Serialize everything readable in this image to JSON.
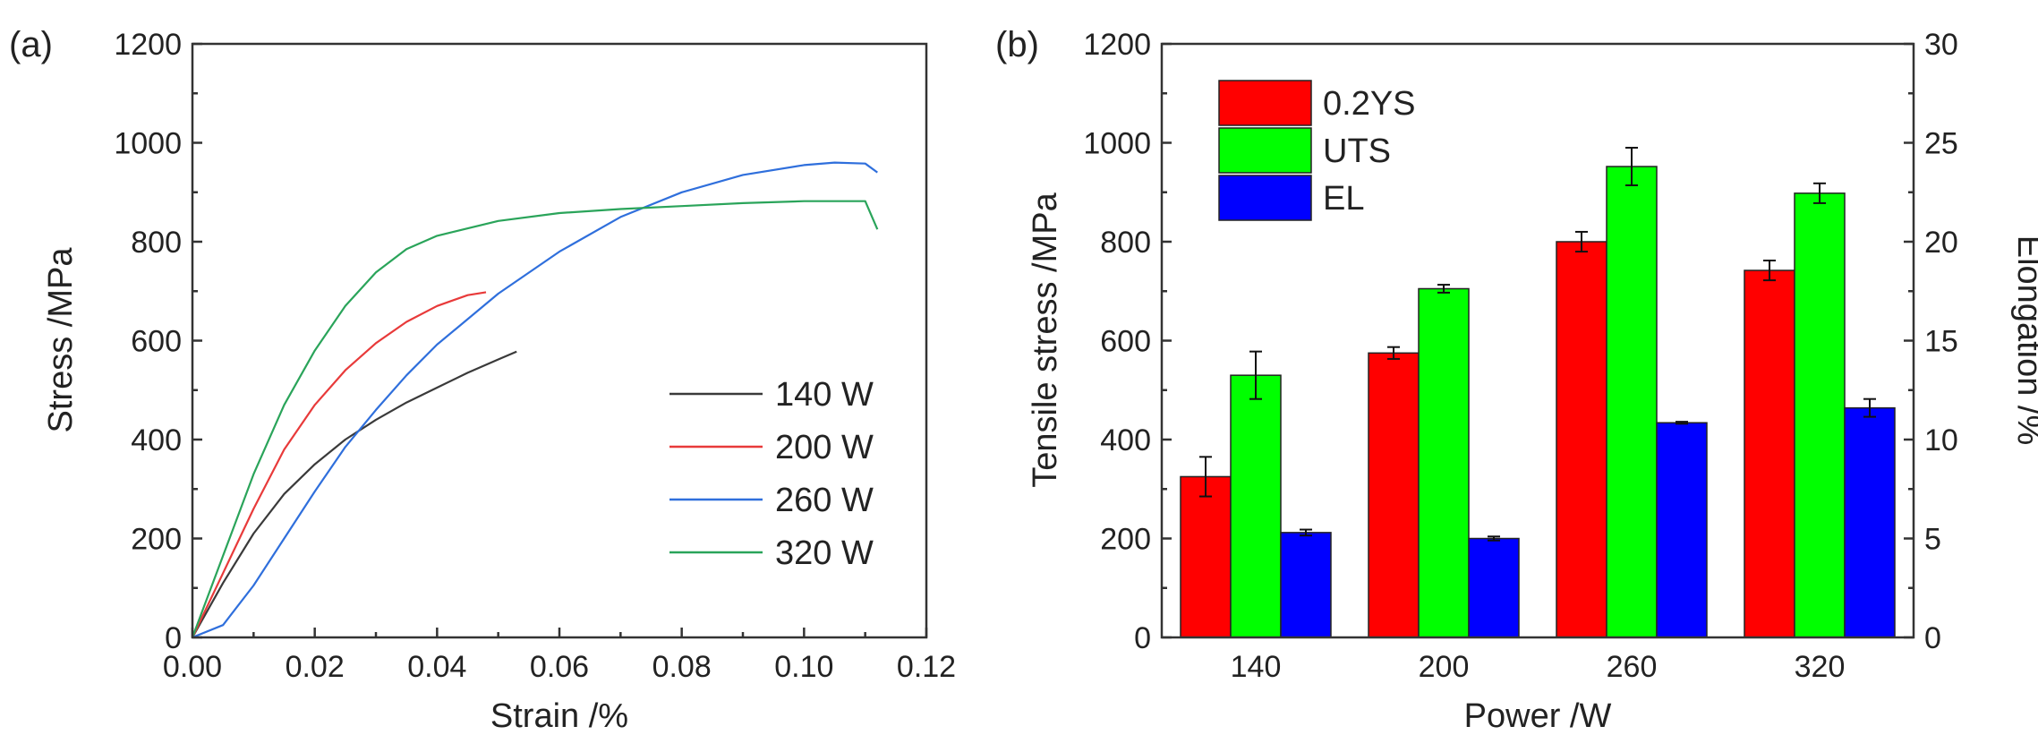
{
  "chart_data": [
    {
      "panel_label": "(a)",
      "type": "line",
      "xlabel": "Strain /%",
      "ylabel": "Stress /MPa",
      "xlim": [
        0,
        0.12
      ],
      "ylim": [
        0,
        1200
      ],
      "x_ticks": [
        "0.00",
        "0.02",
        "0.04",
        "0.06",
        "0.08",
        "0.10",
        "0.12"
      ],
      "y_ticks": [
        "0",
        "200",
        "400",
        "600",
        "800",
        "1000",
        "1200"
      ],
      "legend_position": "bottom-right",
      "series": [
        {
          "name": "140 W",
          "color": "#3a3a3a",
          "x": [
            0,
            0.005,
            0.01,
            0.015,
            0.02,
            0.025,
            0.03,
            0.035,
            0.04,
            0.045,
            0.05,
            0.053
          ],
          "y": [
            0,
            110,
            210,
            290,
            350,
            400,
            440,
            475,
            505,
            535,
            562,
            578
          ]
        },
        {
          "name": "200 W",
          "color": "#e83a3a",
          "x": [
            0,
            0.005,
            0.01,
            0.015,
            0.02,
            0.025,
            0.03,
            0.035,
            0.04,
            0.045,
            0.048
          ],
          "y": [
            0,
            130,
            260,
            380,
            470,
            540,
            595,
            638,
            670,
            692,
            698
          ]
        },
        {
          "name": "260 W",
          "color": "#2f6fdc",
          "x": [
            0,
            0.005,
            0.01,
            0.015,
            0.02,
            0.025,
            0.03,
            0.035,
            0.04,
            0.05,
            0.06,
            0.07,
            0.08,
            0.09,
            0.1,
            0.105,
            0.11,
            0.112
          ],
          "y": [
            0,
            25,
            105,
            200,
            295,
            385,
            460,
            530,
            592,
            695,
            780,
            850,
            900,
            935,
            955,
            960,
            958,
            940
          ]
        },
        {
          "name": "320 W",
          "color": "#2aa45a",
          "x": [
            0,
            0.005,
            0.01,
            0.015,
            0.02,
            0.025,
            0.03,
            0.035,
            0.04,
            0.05,
            0.06,
            0.07,
            0.08,
            0.09,
            0.1,
            0.11,
            0.112
          ],
          "y": [
            0,
            165,
            330,
            470,
            580,
            670,
            738,
            785,
            812,
            842,
            858,
            866,
            872,
            878,
            882,
            882,
            825
          ]
        }
      ]
    },
    {
      "panel_label": "(b)",
      "type": "bar",
      "xlabel": "Power /W",
      "ylabel": "Tensile stress /MPa",
      "y2label": "Elongation /%",
      "categories": [
        "140",
        "200",
        "260",
        "320"
      ],
      "ylim": [
        0,
        1200
      ],
      "y2lim": [
        0,
        30
      ],
      "y_ticks": [
        "0",
        "200",
        "400",
        "600",
        "800",
        "1000",
        "1200"
      ],
      "y2_ticks": [
        "0",
        "5",
        "10",
        "15",
        "20",
        "25",
        "30"
      ],
      "legend_position": "top-left",
      "series": [
        {
          "name": "0.2YS",
          "color": "#ff0000",
          "axis": "left",
          "values": [
            325,
            575,
            800,
            742
          ],
          "errors": [
            40,
            12,
            20,
            20
          ]
        },
        {
          "name": "UTS",
          "color": "#00ff00",
          "axis": "left",
          "values": [
            530,
            705,
            952,
            898
          ],
          "errors": [
            48,
            8,
            38,
            20
          ]
        },
        {
          "name": "EL",
          "color": "#0000ff",
          "axis": "right",
          "values": [
            5.3,
            5.0,
            10.85,
            11.6
          ],
          "errors": [
            0.15,
            0.1,
            0.05,
            0.45
          ]
        }
      ]
    }
  ]
}
